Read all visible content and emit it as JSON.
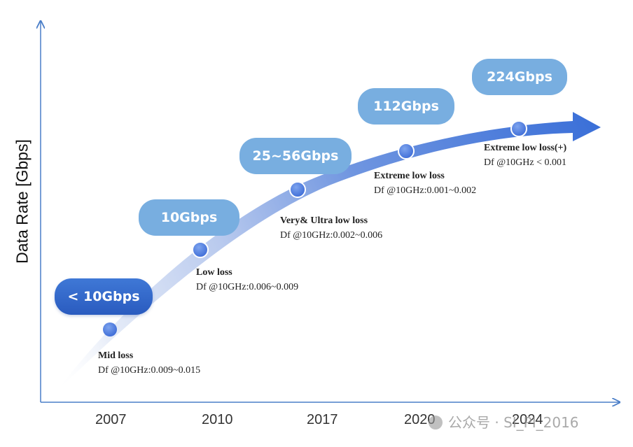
{
  "axis": {
    "ylabel": "Data Rate [Gbps]"
  },
  "years": [
    "2007",
    "2010",
    "2017",
    "2020",
    "2024"
  ],
  "stages": [
    {
      "rate": "< 10Gbps",
      "name": "Mid loss",
      "df": "Df @10GHz:0.009~0.015"
    },
    {
      "rate": "10Gbps",
      "name": "Low loss",
      "df": "Df @10GHz:0.006~0.009"
    },
    {
      "rate": "25~56Gbps",
      "name": "Very& Ultra low loss",
      "df": "Df @10GHz:0.002~0.006"
    },
    {
      "rate": "112Gbps",
      "name": "Extreme low loss",
      "df": "Df @10GHz:0.001~0.002"
    },
    {
      "rate": "224Gbps",
      "name": "Extreme low loss(+)",
      "df": "Df @10GHz < 0.001"
    }
  ],
  "watermark": {
    "text": "公众号 · SI_PI_2016"
  },
  "colors": {
    "arrow_start": "#e9eef9",
    "arrow_end": "#3a6fd8",
    "pill_light": "#78aee0",
    "pill_dark": "#2f63c8",
    "node": "#4a7de0",
    "axis": "#4a7ec8"
  }
}
